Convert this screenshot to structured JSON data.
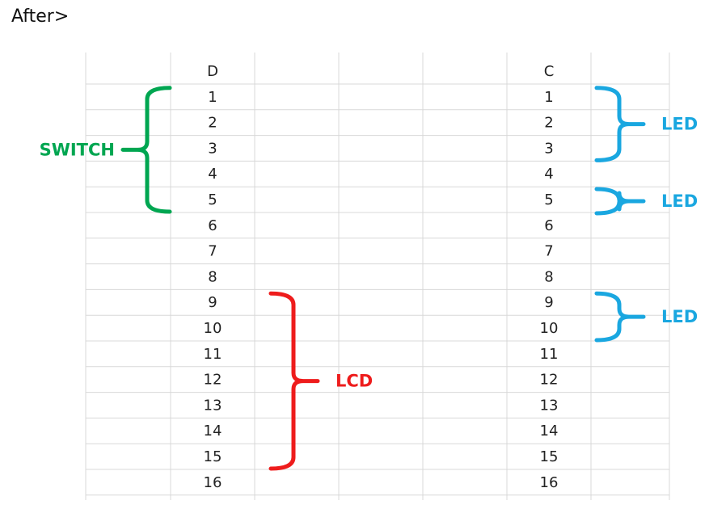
{
  "title": "After>",
  "columns": [
    {
      "header": "D",
      "rows": [
        "1",
        "2",
        "3",
        "4",
        "5",
        "6",
        "7",
        "8",
        "9",
        "10",
        "11",
        "12",
        "13",
        "14",
        "15",
        "16"
      ]
    },
    {
      "header": "C",
      "rows": [
        "1",
        "2",
        "3",
        "4",
        "5",
        "6",
        "7",
        "8",
        "9",
        "10",
        "11",
        "12",
        "13",
        "14",
        "15",
        "16"
      ]
    }
  ],
  "annotations": [
    {
      "label": "SWITCH",
      "color": "#00a651",
      "column": "D",
      "from": "1",
      "to": "5",
      "side": "left"
    },
    {
      "label": "LCD",
      "color": "#ee1c1c",
      "column": "D",
      "from": "9",
      "to": "15",
      "side": "right"
    },
    {
      "label": "LED",
      "color": "#1aa7e0",
      "column": "C",
      "from": "1",
      "to": "3",
      "side": "right"
    },
    {
      "label": "LED",
      "color": "#1aa7e0",
      "column": "C",
      "from": "5",
      "to": "5",
      "side": "right"
    },
    {
      "label": "LED",
      "color": "#1aa7e0",
      "column": "C",
      "from": "9",
      "to": "10",
      "side": "right"
    }
  ]
}
